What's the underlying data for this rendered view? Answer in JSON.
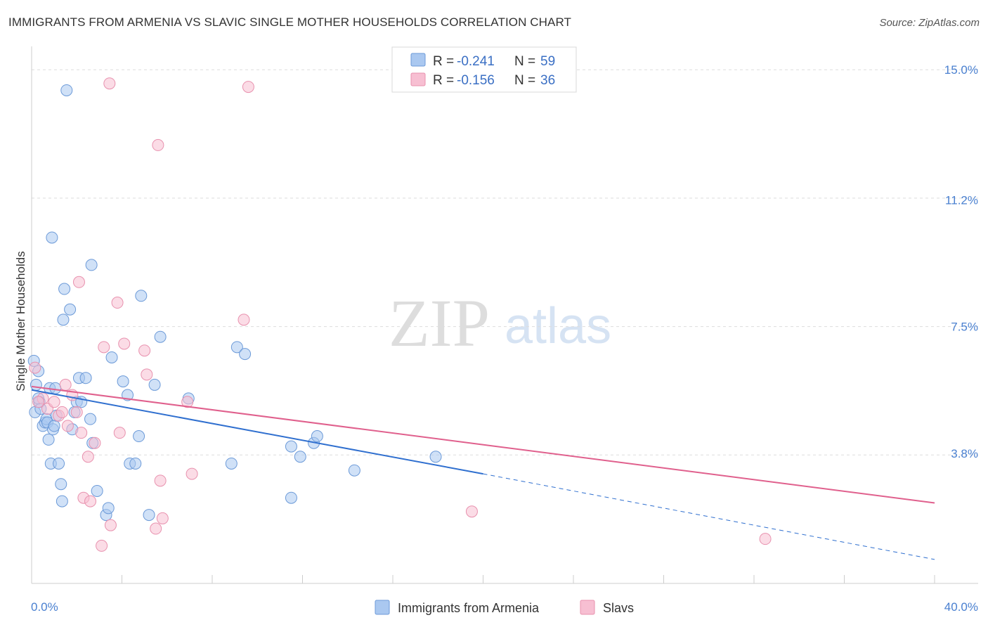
{
  "title": "IMMIGRANTS FROM ARMENIA VS SLAVIC SINGLE MOTHER HOUSEHOLDS CORRELATION CHART",
  "source": "Source: ZipAtlas.com",
  "colors": {
    "blue_fill": "#aac8f0",
    "blue_stroke": "#6c9ad8",
    "blue_line": "#2f6fcf",
    "pink_fill": "#f7bfd2",
    "pink_stroke": "#e891ae",
    "pink_line": "#e0608d",
    "axis_text": "#4a80d0",
    "grid": "#dddddd"
  },
  "watermark": {
    "zip": "ZIP",
    "atlas": "atlas"
  },
  "legend": {
    "rows": [
      {
        "r_label": "R =",
        "r_value": "-0.241",
        "n_label": "N =",
        "n_value": "59"
      },
      {
        "r_label": "R =",
        "r_value": "-0.156",
        "n_label": "N =",
        "n_value": "36"
      }
    ]
  },
  "chart_data": {
    "type": "scatter",
    "title": "IMMIGRANTS FROM ARMENIA VS SLAVIC SINGLE MOTHER HOUSEHOLDS CORRELATION CHART",
    "xlabel": "",
    "ylabel": "Single Mother Households",
    "xlim": [
      0,
      40
    ],
    "ylim": [
      0,
      15.6
    ],
    "x_tick_labels": [
      {
        "value": 0,
        "label": "0.0%"
      },
      {
        "value": 40,
        "label": "40.0%"
      }
    ],
    "y_tick_labels": [
      {
        "value": 15.0,
        "label": "15.0%"
      },
      {
        "value": 11.2,
        "label": "11.2%"
      },
      {
        "value": 7.5,
        "label": "7.5%"
      },
      {
        "value": 3.8,
        "label": "3.8%"
      }
    ],
    "y_gridlines": [
      15.0,
      11.25,
      7.5,
      3.75
    ],
    "x_minor_ticks": [
      4,
      8,
      12,
      16,
      20,
      24,
      28,
      32,
      36,
      40
    ],
    "series": [
      {
        "name": "Immigrants from Armenia",
        "color": "#6c9ad8",
        "r": -0.241,
        "n": 59,
        "points": [
          [
            0.1,
            6.5
          ],
          [
            0.15,
            5.0
          ],
          [
            0.2,
            5.8
          ],
          [
            0.3,
            6.2
          ],
          [
            0.35,
            5.3
          ],
          [
            0.4,
            5.1
          ],
          [
            0.5,
            4.6
          ],
          [
            0.6,
            4.7
          ],
          [
            0.65,
            4.8
          ],
          [
            0.7,
            4.7
          ],
          [
            0.75,
            4.2
          ],
          [
            0.8,
            5.7
          ],
          [
            0.85,
            3.5
          ],
          [
            0.9,
            10.1
          ],
          [
            0.95,
            4.5
          ],
          [
            1.0,
            4.6
          ],
          [
            1.05,
            5.7
          ],
          [
            1.1,
            4.9
          ],
          [
            1.2,
            3.5
          ],
          [
            1.3,
            2.9
          ],
          [
            1.35,
            2.4
          ],
          [
            1.4,
            7.7
          ],
          [
            1.45,
            8.6
          ],
          [
            1.55,
            14.4
          ],
          [
            1.7,
            8.0
          ],
          [
            1.8,
            4.5
          ],
          [
            1.9,
            5.0
          ],
          [
            2.0,
            5.3
          ],
          [
            2.1,
            6.0
          ],
          [
            2.2,
            5.3
          ],
          [
            2.4,
            6.0
          ],
          [
            2.6,
            4.8
          ],
          [
            2.65,
            9.3
          ],
          [
            2.7,
            4.1
          ],
          [
            2.9,
            2.7
          ],
          [
            3.3,
            2.0
          ],
          [
            3.4,
            2.2
          ],
          [
            3.55,
            6.6
          ],
          [
            4.05,
            5.9
          ],
          [
            4.25,
            5.5
          ],
          [
            4.35,
            3.5
          ],
          [
            4.6,
            3.5
          ],
          [
            4.75,
            4.3
          ],
          [
            4.85,
            8.4
          ],
          [
            5.2,
            2.0
          ],
          [
            5.45,
            5.8
          ],
          [
            5.7,
            7.2
          ],
          [
            6.95,
            5.4
          ],
          [
            8.85,
            3.5
          ],
          [
            9.1,
            6.9
          ],
          [
            9.45,
            6.7
          ],
          [
            11.5,
            2.5
          ],
          [
            11.5,
            4.0
          ],
          [
            11.9,
            3.7
          ],
          [
            12.5,
            4.1
          ],
          [
            12.65,
            4.3
          ],
          [
            14.3,
            3.3
          ],
          [
            17.9,
            3.7
          ],
          [
            0.3,
            5.4
          ]
        ],
        "trend": {
          "x0": 0,
          "y0": 5.65,
          "x1": 20,
          "y1": 3.2,
          "dashed_to_x": 40,
          "dashed_to_y": 0.7
        }
      },
      {
        "name": "Slavs",
        "color": "#e891ae",
        "r": -0.156,
        "n": 36,
        "points": [
          [
            0.15,
            6.3
          ],
          [
            0.5,
            5.4
          ],
          [
            0.7,
            5.1
          ],
          [
            1.0,
            5.3
          ],
          [
            1.2,
            4.9
          ],
          [
            1.35,
            5.0
          ],
          [
            1.5,
            5.8
          ],
          [
            1.6,
            4.6
          ],
          [
            1.8,
            5.5
          ],
          [
            2.0,
            5.0
          ],
          [
            2.1,
            8.8
          ],
          [
            2.2,
            4.4
          ],
          [
            2.3,
            2.5
          ],
          [
            2.5,
            3.7
          ],
          [
            2.6,
            2.4
          ],
          [
            2.8,
            4.1
          ],
          [
            3.1,
            1.1
          ],
          [
            3.2,
            6.9
          ],
          [
            3.5,
            1.7
          ],
          [
            3.8,
            8.2
          ],
          [
            3.9,
            4.4
          ],
          [
            4.1,
            7.0
          ],
          [
            5.0,
            6.8
          ],
          [
            5.1,
            6.1
          ],
          [
            5.5,
            1.6
          ],
          [
            5.6,
            12.8
          ],
          [
            5.7,
            3.0
          ],
          [
            5.8,
            1.9
          ],
          [
            6.9,
            5.3
          ],
          [
            7.1,
            3.2
          ],
          [
            9.4,
            7.7
          ],
          [
            9.6,
            14.5
          ],
          [
            3.45,
            14.6
          ],
          [
            19.5,
            2.1
          ],
          [
            32.5,
            1.3
          ],
          [
            0.3,
            5.3
          ]
        ],
        "trend": {
          "x0": 0,
          "y0": 5.75,
          "x1": 40,
          "y1": 2.35
        }
      }
    ],
    "legend_position": "top-center"
  }
}
